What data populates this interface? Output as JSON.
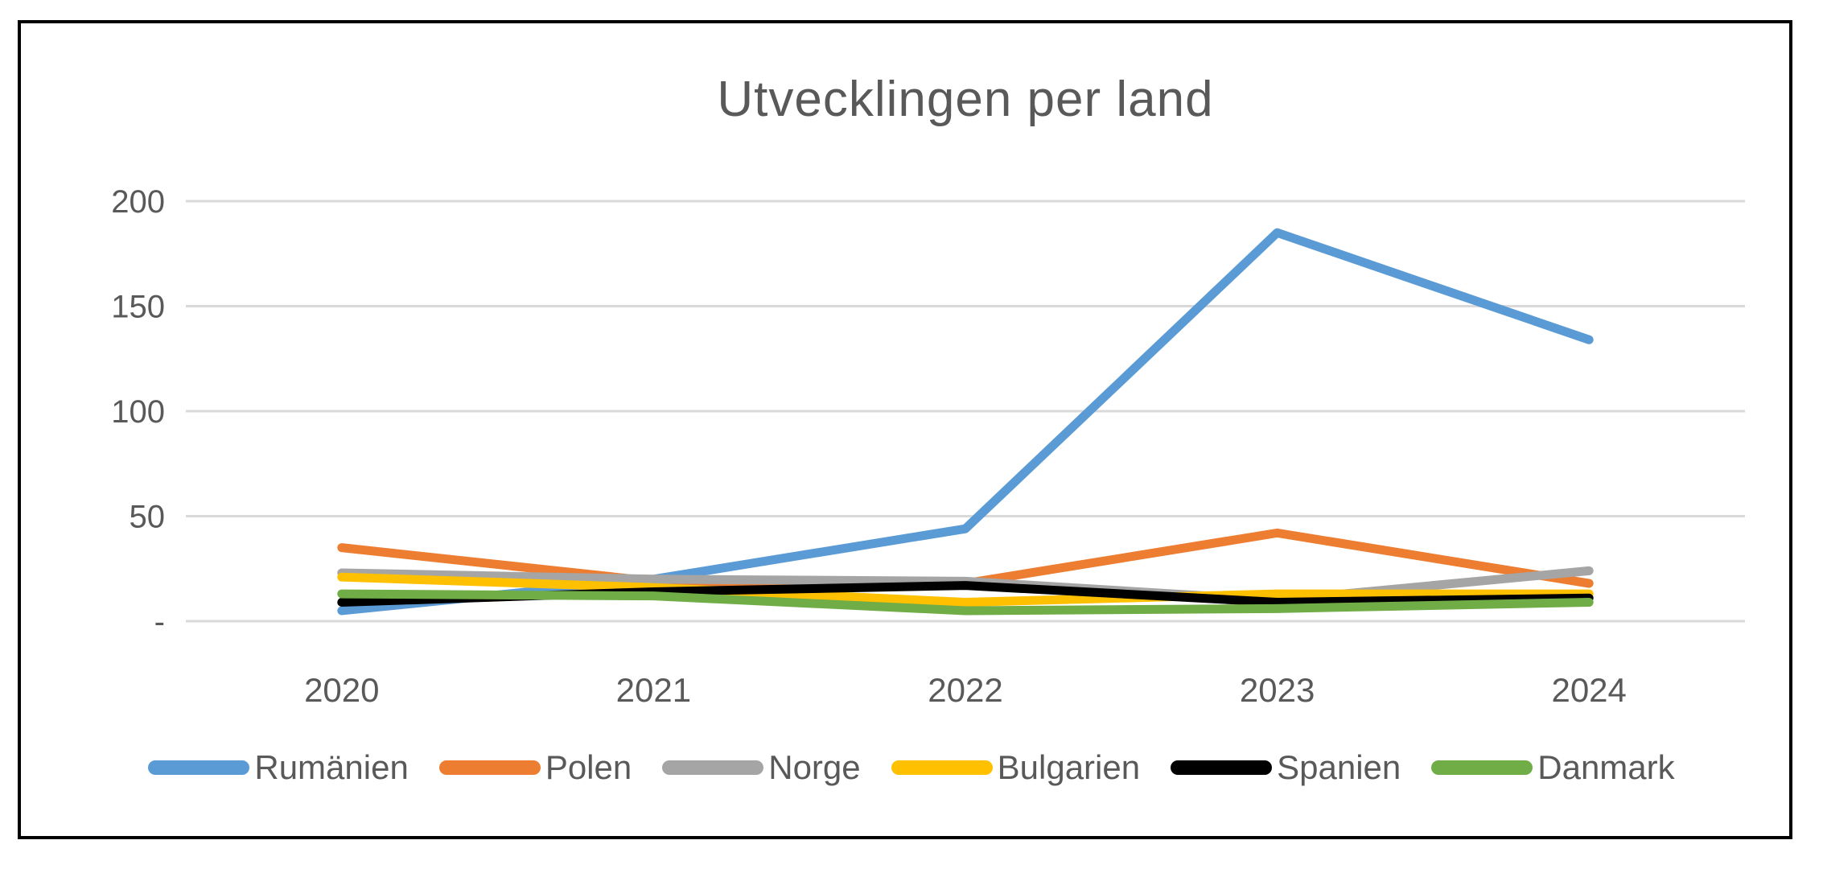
{
  "chart_data": {
    "type": "line",
    "title": "Utvecklingen per land",
    "categories": [
      "2020",
      "2021",
      "2022",
      "2023",
      "2024"
    ],
    "series": [
      {
        "name": "Rumänien",
        "color": "#5B9BD5",
        "values": [
          5,
          20,
          44,
          185,
          134
        ]
      },
      {
        "name": "Polen",
        "color": "#ED7D31",
        "values": [
          35,
          19,
          18,
          42,
          18
        ]
      },
      {
        "name": "Norge",
        "color": "#A5A5A5",
        "values": [
          23,
          20,
          19,
          10,
          24
        ]
      },
      {
        "name": "Bulgarien",
        "color": "#FFC000",
        "values": [
          21,
          16,
          9,
          13,
          13
        ]
      },
      {
        "name": "Spanien",
        "color": "#000000",
        "values": [
          9,
          14,
          17,
          9,
          11
        ]
      },
      {
        "name": "Danmark",
        "color": "#70AD47",
        "values": [
          13,
          12,
          5,
          6,
          9
        ]
      }
    ],
    "yticks": [
      {
        "value": 0,
        "label": "-"
      },
      {
        "value": 50,
        "label": "50"
      },
      {
        "value": 100,
        "label": "100"
      },
      {
        "value": 150,
        "label": "150"
      },
      {
        "value": 200,
        "label": "200"
      }
    ],
    "ylim": [
      0,
      200
    ],
    "xlabel": "",
    "ylabel": "",
    "grid": true,
    "legend_position": "bottom",
    "text_color": "#595959",
    "gridline_color": "#D9D9D9",
    "frame_color": "#000000",
    "background_color": "#FFFFFF"
  }
}
